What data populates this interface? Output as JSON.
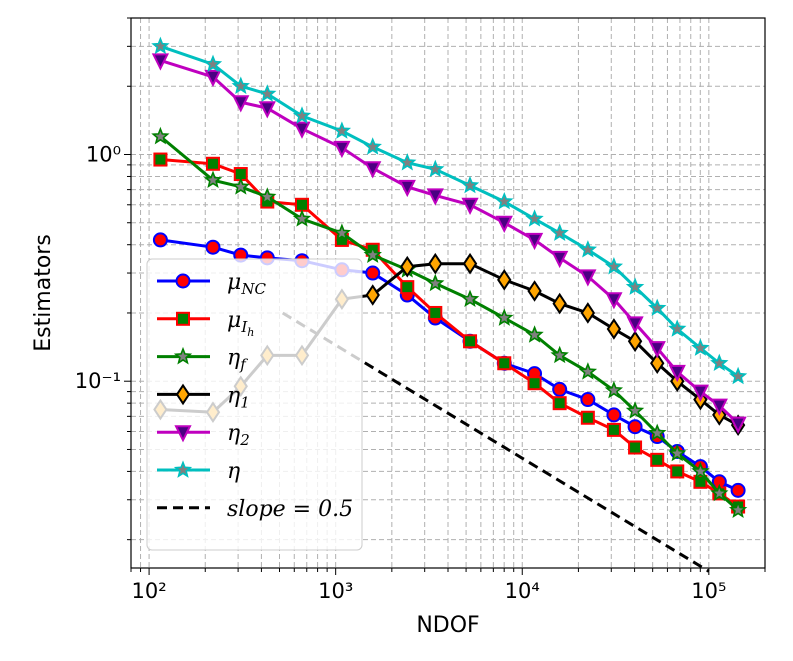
{
  "chart_data": {
    "type": "line",
    "title": "",
    "xlabel": "NDOF",
    "ylabel": "Estimators",
    "xscale": "log",
    "yscale": "log",
    "xlim": [
      80,
      200000
    ],
    "ylim": [
      0.015,
      4.0
    ],
    "grid": true,
    "legend_position": "lower-left",
    "x_ticks": [
      {
        "value": 100,
        "label": "10²"
      },
      {
        "value": 1000,
        "label": "10³"
      },
      {
        "value": 10000,
        "label": "10⁴"
      },
      {
        "value": 100000,
        "label": "10⁵"
      }
    ],
    "y_ticks": [
      {
        "value": 1,
        "label": "10⁰"
      },
      {
        "value": 0.1,
        "label": "10⁻¹"
      }
    ],
    "x": [
      115,
      220,
      310,
      430,
      660,
      1080,
      1580,
      2420,
      3420,
      5250,
      8010,
      11640,
      15870,
      22470,
      30990,
      40240,
      52900,
      67720,
      90140,
      113800,
      143500
    ],
    "series": [
      {
        "name": "μNC",
        "color": "#0000ff",
        "marker": "circle",
        "marker_fill": "#ff0000",
        "marker_edge": "#0000ff",
        "values": [
          0.42,
          0.39,
          0.36,
          0.35,
          0.34,
          0.31,
          0.3,
          0.24,
          0.19,
          0.15,
          0.12,
          0.108,
          0.092,
          0.083,
          0.071,
          0.063,
          0.057,
          0.049,
          0.042,
          0.036,
          0.033
        ]
      },
      {
        "name": "μIh",
        "color": "#ff0000",
        "marker": "square",
        "marker_fill": "#008000",
        "marker_edge": "#ff0000",
        "values": [
          0.95,
          0.91,
          0.82,
          0.62,
          0.6,
          0.42,
          0.38,
          0.26,
          0.2,
          0.15,
          0.12,
          0.098,
          0.08,
          0.069,
          0.061,
          0.051,
          0.045,
          0.04,
          0.036,
          0.032,
          0.028
        ]
      },
      {
        "name": "ηf",
        "color": "#008000",
        "marker": "star",
        "marker_fill": "#808080",
        "marker_edge": "#008000",
        "values": [
          1.2,
          0.77,
          0.72,
          0.65,
          0.52,
          0.45,
          0.36,
          0.31,
          0.27,
          0.23,
          0.19,
          0.16,
          0.13,
          0.11,
          0.091,
          0.074,
          0.059,
          0.048,
          0.04,
          0.032,
          0.027
        ]
      },
      {
        "name": "η1",
        "color": "#000000",
        "marker": "diamond",
        "marker_fill": "#ffa500",
        "marker_edge": "#000000",
        "values": [
          0.075,
          0.073,
          0.095,
          0.13,
          0.13,
          0.23,
          0.24,
          0.32,
          0.33,
          0.33,
          0.28,
          0.25,
          0.22,
          0.2,
          0.17,
          0.15,
          0.12,
          0.1,
          0.083,
          0.071,
          0.064
        ]
      },
      {
        "name": "η2",
        "color": "#bf00bf",
        "marker": "triangle-down",
        "marker_fill": "#4b0082",
        "marker_edge": "#bf00bf",
        "values": [
          2.6,
          2.2,
          1.7,
          1.6,
          1.3,
          1.07,
          0.87,
          0.72,
          0.66,
          0.6,
          0.5,
          0.42,
          0.35,
          0.29,
          0.23,
          0.18,
          0.14,
          0.11,
          0.09,
          0.078,
          0.065
        ]
      },
      {
        "name": "η",
        "color": "#00bfbf",
        "marker": "star",
        "marker_fill": "#808080",
        "marker_edge": "#00bfbf",
        "values": [
          3.0,
          2.5,
          2.0,
          1.85,
          1.48,
          1.27,
          1.08,
          0.92,
          0.86,
          0.73,
          0.62,
          0.52,
          0.45,
          0.38,
          0.32,
          0.26,
          0.21,
          0.17,
          0.14,
          0.12,
          0.105
        ]
      },
      {
        "name": "slope = 0.5",
        "color": "#000000",
        "linestyle": "dashed",
        "marker": "none",
        "x": [
          520,
          100000
        ],
        "values": [
          0.2,
          0.0145
        ]
      }
    ],
    "legend": [
      {
        "key": "mu_nc",
        "base": "μ",
        "sub": "NC"
      },
      {
        "key": "mu_ih",
        "base": "μ",
        "sub": "I",
        "subsub": "h"
      },
      {
        "key": "eta_f",
        "base": "η",
        "sub": "f"
      },
      {
        "key": "eta_1",
        "base": "η",
        "sub": "1"
      },
      {
        "key": "eta_2",
        "base": "η",
        "sub": "2"
      },
      {
        "key": "eta",
        "base": "η",
        "sub": ""
      },
      {
        "key": "slope",
        "text": "slope = 0.5"
      }
    ]
  }
}
